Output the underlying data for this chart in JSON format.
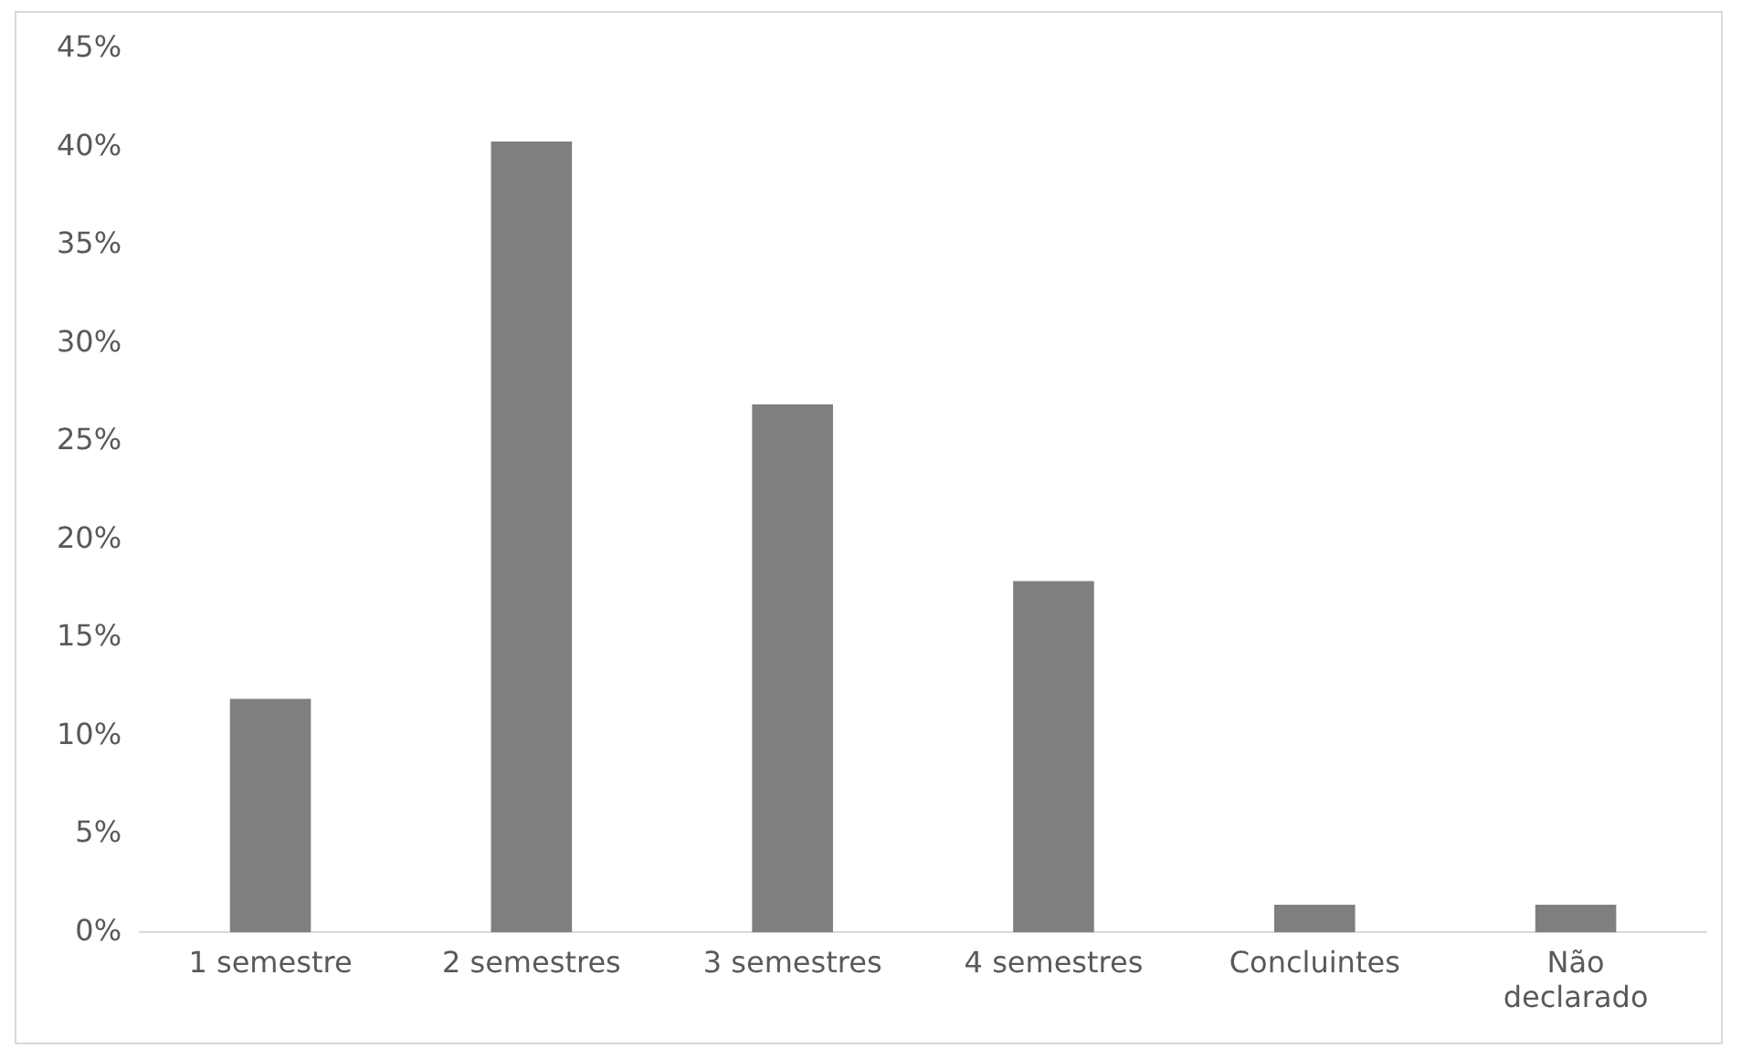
{
  "chart_data": {
    "type": "bar",
    "categories": [
      "1 semestre",
      "2 semestres",
      "3 semestres",
      "4 semestres",
      "Concluintes",
      "Não declarado"
    ],
    "values": [
      11.9,
      40.3,
      26.9,
      17.9,
      1.4,
      1.4
    ],
    "color": "#7f7f7f",
    "ylim": [
      0,
      45
    ],
    "yticks": [
      {
        "value": 0,
        "label": "0%"
      },
      {
        "value": 5,
        "label": "5%"
      },
      {
        "value": 10,
        "label": "10%"
      },
      {
        "value": 15,
        "label": "15%"
      },
      {
        "value": 20,
        "label": "20%"
      },
      {
        "value": 25,
        "label": "25%"
      },
      {
        "value": 30,
        "label": "30%"
      },
      {
        "value": 35,
        "label": "35%"
      },
      {
        "value": 40,
        "label": "40%"
      },
      {
        "value": 45,
        "label": "45%"
      }
    ],
    "grid": false,
    "legend": false
  }
}
